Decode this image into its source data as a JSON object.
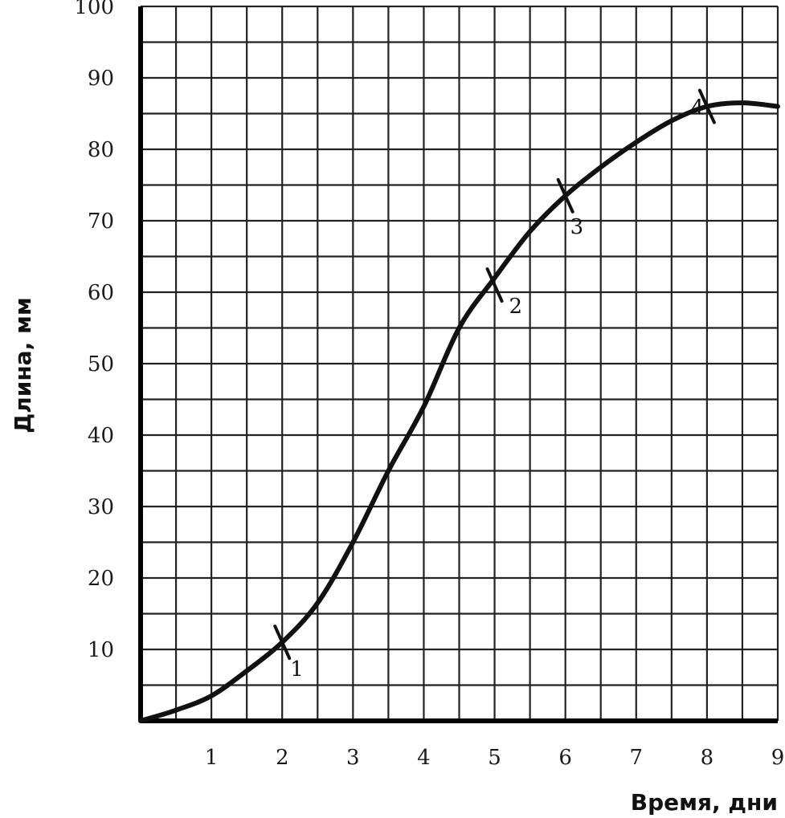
{
  "chart_data": {
    "type": "line",
    "title": "",
    "xlabel": "Время, дни",
    "ylabel": "Длина, мм",
    "xlim": [
      0,
      9
    ],
    "ylim": [
      0,
      100
    ],
    "grid": true,
    "x_ticks": [
      "1",
      "2",
      "3",
      "4",
      "5",
      "6",
      "7",
      "8",
      "9"
    ],
    "y_ticks": [
      "10",
      "20",
      "30",
      "40",
      "50",
      "60",
      "70",
      "80",
      "90",
      "100"
    ],
    "series": [
      {
        "x": [
          0,
          0.5,
          1,
          1.5,
          2,
          2.5,
          3,
          3.5,
          4,
          4.5,
          5,
          5.5,
          6,
          6.5,
          7,
          7.5,
          8,
          8.5,
          9
        ],
        "y": [
          0,
          1.5,
          3.5,
          7,
          11,
          16.5,
          25,
          35,
          44,
          55,
          62,
          68.5,
          73.5,
          77.5,
          81,
          84,
          86,
          86.5,
          86
        ]
      }
    ],
    "markers": [
      {
        "label": "1",
        "x": 2,
        "y": 11
      },
      {
        "label": "2",
        "x": 5,
        "y": 61
      },
      {
        "label": "3",
        "x": 6,
        "y": 73.5
      },
      {
        "label": "4",
        "x": 8,
        "y": 86
      }
    ]
  }
}
